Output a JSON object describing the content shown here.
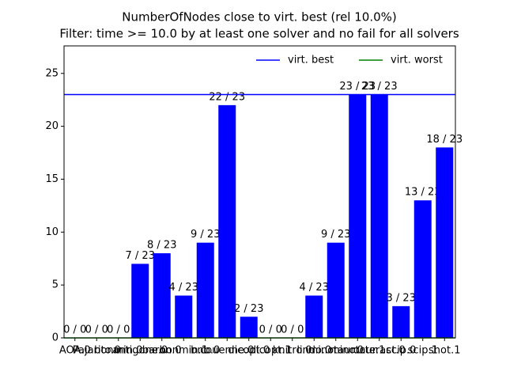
{
  "chart_data": {
    "type": "bar",
    "title": "NumberOfNodes close to virt. best (rel 10.0%)",
    "subtitle": "Filter: time >= 10.0 by at least one solver and no fail for all solvers",
    "categories": [
      "AOA.0",
      "Pajarito.0",
      "bonmin.0",
      "antigone.0",
      "baron.0",
      "bonmin.1",
      "bnb.0",
      "couenne.0",
      "dicopt.0",
      "dicopt.1",
      "knitro.0",
      "lindo.0",
      "minotaur.0",
      "minotaur.1",
      "octeract.0",
      "scip.0",
      "scip.1",
      "shot.1"
    ],
    "values": [
      0,
      0,
      0,
      7,
      8,
      4,
      9,
      22,
      2,
      0,
      0,
      4,
      9,
      23,
      23,
      3,
      13,
      18
    ],
    "value_labels": [
      "0 / 0",
      "0 / 0",
      "0 / 0",
      "7 / 23",
      "8 / 23",
      "4 / 23",
      "9 / 23",
      "22 / 23",
      "2 / 23",
      "0 / 0",
      "0 / 0",
      "4 / 23",
      "9 / 23",
      "23 / 23",
      "23 / 23",
      "3 / 23",
      "13 / 23",
      "18 / 23"
    ],
    "color": "#0000ff",
    "reference_lines": [
      {
        "name": "virt. best",
        "color": "#0000ff",
        "value": 23
      },
      {
        "name": "virt. worst",
        "color": "#008000",
        "value": 0
      }
    ],
    "legend": "upper right",
    "ylim": [
      0,
      27.6
    ],
    "yticks": [
      0,
      5,
      10,
      15,
      20,
      25
    ]
  }
}
